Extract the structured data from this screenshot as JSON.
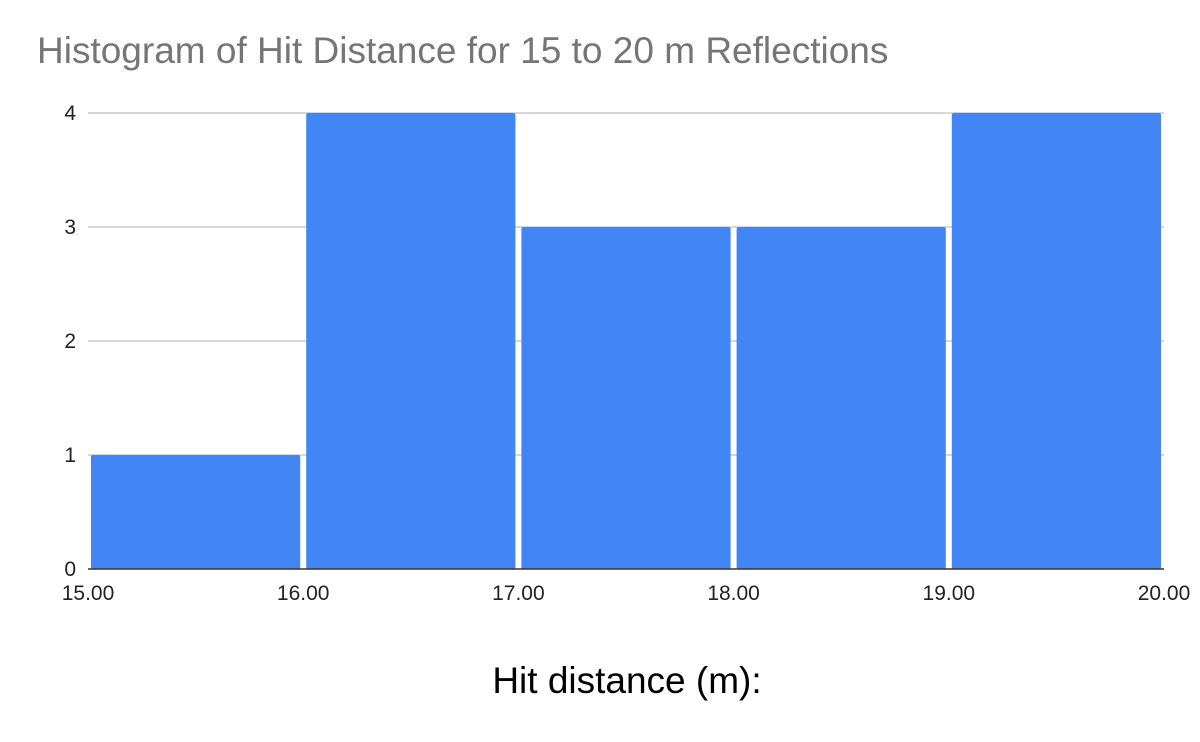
{
  "chart_data": {
    "type": "bar",
    "title": "Histogram of Hit Distance for 15 to 20 m Reflections",
    "xlabel": "Hit distance (m):",
    "ylabel": "",
    "bins": [
      {
        "start": 15.0,
        "end": 16.0,
        "count": 1
      },
      {
        "start": 16.0,
        "end": 17.0,
        "count": 4
      },
      {
        "start": 17.0,
        "end": 18.0,
        "count": 3
      },
      {
        "start": 18.0,
        "end": 19.0,
        "count": 3
      },
      {
        "start": 19.0,
        "end": 20.0,
        "count": 4
      }
    ],
    "x_ticks": [
      "15.00",
      "16.00",
      "17.00",
      "18.00",
      "19.00",
      "20.00"
    ],
    "y_ticks": [
      "0",
      "1",
      "2",
      "3",
      "4"
    ],
    "xlim": [
      15,
      20
    ],
    "ylim": [
      0,
      4
    ],
    "grid": true,
    "legend": "none",
    "bar_color": "#4285f4",
    "grid_color": "#cccccc",
    "axis_color": "#333333"
  }
}
